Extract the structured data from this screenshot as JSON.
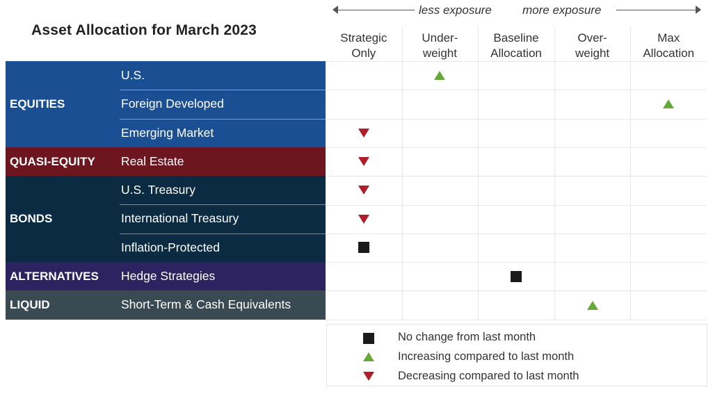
{
  "title": "Asset Allocation for March 2023",
  "exposure": {
    "less": "less exposure",
    "more": "more exposure"
  },
  "columns": [
    [
      "Strategic",
      "Only"
    ],
    [
      "Under-",
      "weight"
    ],
    [
      "Baseline",
      "Allocation"
    ],
    [
      "Over-",
      "weight"
    ],
    [
      "Max",
      "Allocation"
    ]
  ],
  "colors": {
    "equities": "#1b4f93",
    "quasi_equity": "#6e1620",
    "bonds": "#0a2b42",
    "alternatives": "#2c2360",
    "liquid": "#3a4a52",
    "increase": "#67a83b",
    "decrease": "#b01e2a",
    "no_change": "#1a1a1a"
  },
  "groups": [
    {
      "label": "EQUITIES",
      "color_key": "equities",
      "rows": [
        "U.S.",
        "Foreign Developed",
        "Emerging Market"
      ]
    },
    {
      "label": "QUASI-EQUITY",
      "color_key": "quasi_equity",
      "rows": [
        "Real Estate"
      ]
    },
    {
      "label": "BONDS",
      "color_key": "bonds",
      "rows": [
        "U.S. Treasury",
        "International Treasury",
        "Inflation-Protected"
      ]
    },
    {
      "label": "ALTERNATIVES",
      "color_key": "alternatives",
      "rows": [
        "Hedge Strategies"
      ]
    },
    {
      "label": "LIQUID",
      "color_key": "liquid",
      "rows": [
        "Short-Term & Cash Equivalents"
      ]
    }
  ],
  "chart_data": {
    "type": "table",
    "title": "Asset Allocation for March 2023",
    "columns": [
      "Strategic Only",
      "Underweight",
      "Baseline Allocation",
      "Overweight",
      "Max Allocation"
    ],
    "rows": [
      {
        "group": "EQUITIES",
        "asset": "U.S.",
        "position": "Underweight",
        "change": "increase"
      },
      {
        "group": "EQUITIES",
        "asset": "Foreign Developed",
        "position": "Max Allocation",
        "change": "increase"
      },
      {
        "group": "EQUITIES",
        "asset": "Emerging Market",
        "position": "Strategic Only",
        "change": "decrease"
      },
      {
        "group": "QUASI-EQUITY",
        "asset": "Real Estate",
        "position": "Strategic Only",
        "change": "decrease"
      },
      {
        "group": "BONDS",
        "asset": "U.S. Treasury",
        "position": "Strategic Only",
        "change": "decrease"
      },
      {
        "group": "BONDS",
        "asset": "International Treasury",
        "position": "Strategic Only",
        "change": "decrease"
      },
      {
        "group": "BONDS",
        "asset": "Inflation-Protected",
        "position": "Strategic Only",
        "change": "no_change"
      },
      {
        "group": "ALTERNATIVES",
        "asset": "Hedge Strategies",
        "position": "Baseline Allocation",
        "change": "no_change"
      },
      {
        "group": "LIQUID",
        "asset": "Short-Term & Cash Equivalents",
        "position": "Overweight",
        "change": "increase"
      }
    ]
  },
  "legend": [
    {
      "symbol": "no_change",
      "label": "No change from last month"
    },
    {
      "symbol": "increase",
      "label": "Increasing compared to last month"
    },
    {
      "symbol": "decrease",
      "label": "Decreasing compared to last month"
    }
  ]
}
